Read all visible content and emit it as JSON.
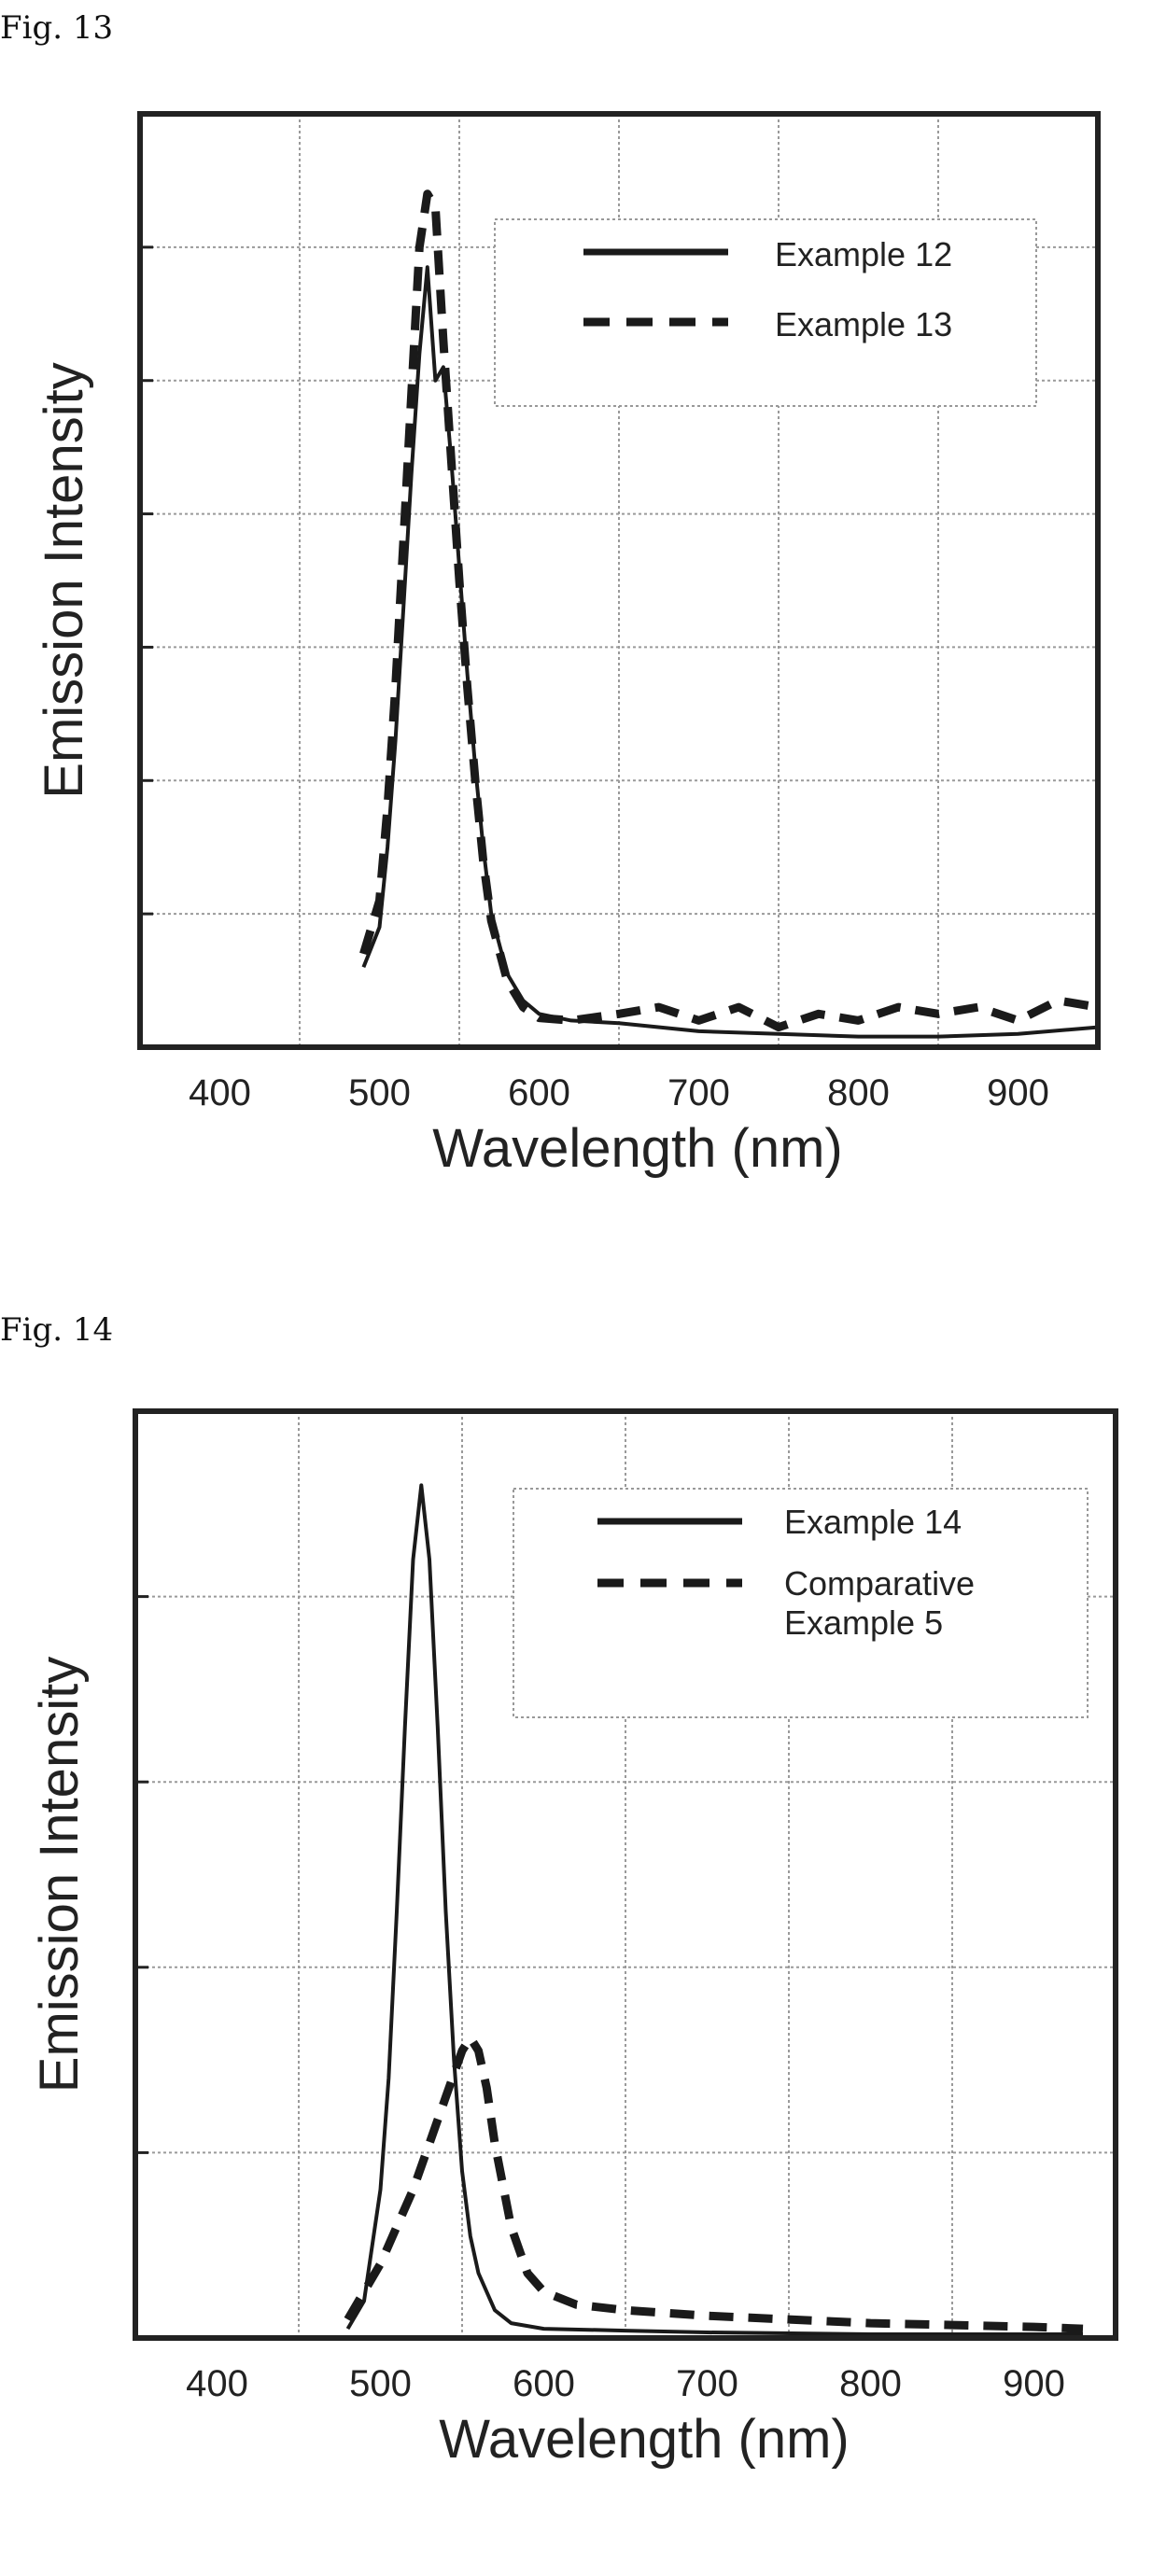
{
  "figures": [
    {
      "label": "Fig.  13"
    },
    {
      "label": "Fig.  14"
    }
  ],
  "chart_data": [
    {
      "type": "line",
      "title": "",
      "xlabel": "Wavelength (nm)",
      "ylabel": "Emission Intensity",
      "xlim": [
        350,
        950
      ],
      "ylim": [
        0,
        7
      ],
      "xticks": [
        400,
        500,
        600,
        700,
        800,
        900
      ],
      "grid": true,
      "legend_position": "top-right",
      "series": [
        {
          "name": "Example 12",
          "style": "solid",
          "x": [
            490,
            500,
            505,
            510,
            515,
            520,
            525,
            530,
            535,
            540,
            545,
            550,
            555,
            560,
            565,
            570,
            580,
            590,
            600,
            620,
            650,
            700,
            750,
            800,
            850,
            900,
            950
          ],
          "y": [
            0.6,
            0.9,
            1.5,
            2.3,
            3.3,
            4.3,
            5.2,
            5.85,
            5.0,
            5.1,
            4.4,
            3.6,
            2.8,
            2.1,
            1.5,
            1.0,
            0.55,
            0.35,
            0.25,
            0.2,
            0.18,
            0.12,
            0.1,
            0.08,
            0.08,
            0.1,
            0.15
          ]
        },
        {
          "name": "Example 13",
          "style": "dashed",
          "x": [
            490,
            500,
            505,
            510,
            515,
            520,
            525,
            530,
            535,
            540,
            545,
            550,
            555,
            560,
            565,
            570,
            580,
            590,
            600,
            620,
            650,
            675,
            700,
            725,
            750,
            775,
            800,
            825,
            850,
            875,
            900,
            925,
            950
          ],
          "y": [
            0.7,
            1.1,
            1.8,
            2.7,
            3.8,
            4.9,
            6.0,
            6.4,
            6.3,
            5.3,
            4.4,
            3.5,
            2.7,
            2.0,
            1.4,
            0.95,
            0.5,
            0.3,
            0.22,
            0.2,
            0.25,
            0.3,
            0.2,
            0.3,
            0.15,
            0.25,
            0.2,
            0.3,
            0.25,
            0.3,
            0.2,
            0.35,
            0.3
          ]
        }
      ]
    },
    {
      "type": "line",
      "title": "",
      "xlabel": "Wavelength (nm)",
      "ylabel": "Emission Intensity",
      "xlim": [
        350,
        950
      ],
      "ylim": [
        0,
        5
      ],
      "xticks": [
        400,
        500,
        600,
        700,
        800,
        900
      ],
      "grid": true,
      "legend_position": "top-right",
      "series": [
        {
          "name": "Example 14",
          "style": "solid",
          "x": [
            480,
            490,
            500,
            505,
            510,
            515,
            520,
            525,
            530,
            535,
            540,
            545,
            550,
            555,
            560,
            570,
            580,
            600,
            650,
            700,
            800,
            900,
            930
          ],
          "y": [
            0.05,
            0.2,
            0.8,
            1.4,
            2.3,
            3.3,
            4.2,
            4.6,
            4.2,
            3.3,
            2.3,
            1.5,
            0.9,
            0.55,
            0.35,
            0.15,
            0.08,
            0.05,
            0.04,
            0.03,
            0.02,
            0.02,
            0.02
          ]
        },
        {
          "name": "Comparative Example 5",
          "style": "dashed",
          "x": [
            480,
            490,
            500,
            510,
            520,
            530,
            540,
            550,
            555,
            560,
            565,
            570,
            580,
            590,
            600,
            620,
            650,
            700,
            750,
            800,
            850,
            900,
            930
          ],
          "y": [
            0.1,
            0.25,
            0.4,
            0.6,
            0.8,
            1.05,
            1.3,
            1.55,
            1.62,
            1.55,
            1.35,
            1.05,
            0.6,
            0.35,
            0.25,
            0.18,
            0.15,
            0.12,
            0.1,
            0.08,
            0.07,
            0.06,
            0.05
          ]
        }
      ]
    }
  ]
}
